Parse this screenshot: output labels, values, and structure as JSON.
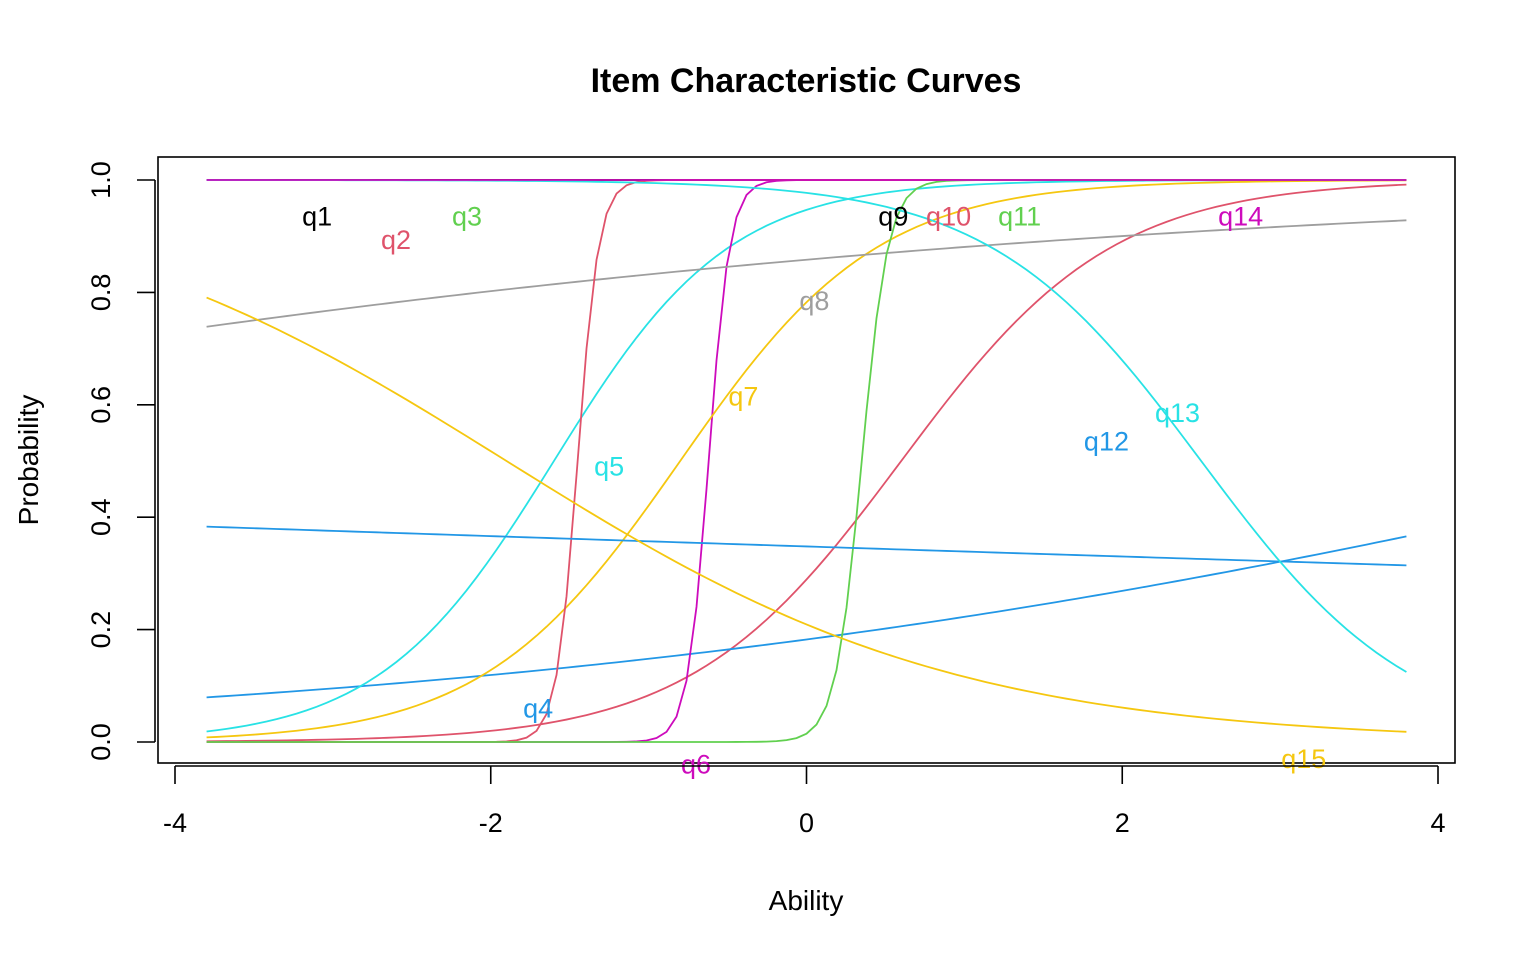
{
  "chart_data": {
    "type": "line",
    "title": "Item Characteristic Curves",
    "xlabel": "Ability",
    "ylabel": "Probability",
    "xlim": [
      -4,
      4
    ],
    "ylim": [
      0,
      1
    ],
    "x_range": [
      -3.8,
      3.8
    ],
    "x_ticks": [
      -4,
      -2,
      0,
      2,
      4
    ],
    "x_tick_labels": [
      "-4",
      "-2",
      "0",
      "2",
      "4"
    ],
    "y_ticks": [
      0,
      0.2,
      0.4,
      0.6,
      0.8,
      1
    ],
    "y_tick_labels": [
      "0.0",
      "0.2",
      "0.4",
      "0.6",
      "0.8",
      "1.0"
    ],
    "grid": false,
    "legend": "none",
    "series": [
      {
        "name": "q1",
        "color": "#000000",
        "a": 15,
        "b": -12,
        "label_x": -3.1,
        "label_y": 0.935
      },
      {
        "name": "q2",
        "color": "#DF536B",
        "a": 1.5,
        "b": 0.6,
        "label_x": -2.6,
        "label_y": 0.893
      },
      {
        "name": "q3",
        "color": "#61D04F",
        "a": 8,
        "b": -8,
        "label_x": -2.15,
        "label_y": 0.935
      },
      {
        "name": "q4",
        "color": "#2297E6",
        "a": 0.25,
        "b": 6.0,
        "label_x": -1.7,
        "label_y": 0.06
      },
      {
        "name": "q5",
        "color": "#28E2E5",
        "a": 1.8,
        "b": -1.6,
        "label_x": -1.25,
        "label_y": 0.49
      },
      {
        "name": "q6",
        "color": "#CD0BBC",
        "a": 15,
        "b": -0.62,
        "label_x": -0.7,
        "label_y": -0.04
      },
      {
        "name": "q7",
        "color": "#F5C710",
        "a": 1.6,
        "b": -0.8,
        "label_x": -0.4,
        "label_y": 0.615
      },
      {
        "name": "q8",
        "color": "#9E9E9E",
        "a": 0.2,
        "b": -9.0,
        "label_x": 0.05,
        "label_y": 0.785
      },
      {
        "name": "q9",
        "color": "#000000",
        "a": 15,
        "b": -6.0,
        "label_x": 0.55,
        "label_y": 0.935
      },
      {
        "name": "q10",
        "color": "#DF536B",
        "a": 15,
        "b": -1.45,
        "label_x": 0.9,
        "label_y": 0.935
      },
      {
        "name": "q11",
        "color": "#61D04F",
        "a": 12,
        "b": 0.35,
        "label_x": 1.35,
        "label_y": 0.935
      },
      {
        "name": "q12",
        "color": "#2297E6",
        "a": -0.04,
        "b": -15.7,
        "label_x": 1.9,
        "label_y": 0.535
      },
      {
        "name": "q13",
        "color": "#28E2E5",
        "a": -1.5,
        "b": 2.5,
        "label_x": 2.35,
        "label_y": 0.585
      },
      {
        "name": "q14",
        "color": "#CD0BBC",
        "a": 15,
        "b": -12,
        "label_x": 2.75,
        "label_y": 0.935
      },
      {
        "name": "q15",
        "color": "#F5C710",
        "a": -0.7,
        "b": -1.9,
        "label_x": 3.15,
        "label_y": -0.03
      }
    ]
  }
}
